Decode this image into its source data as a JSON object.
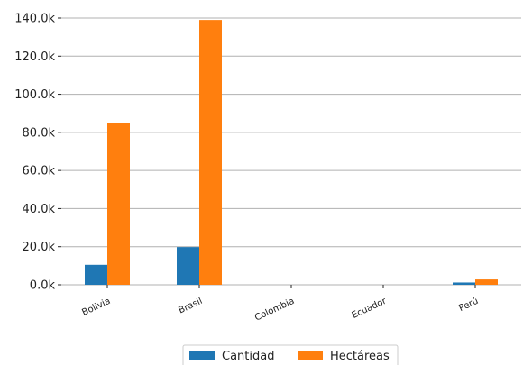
{
  "chart_data": {
    "type": "bar",
    "categories": [
      "Bolivia",
      "Brasil",
      "Colombia",
      "Ecuador",
      "Perú"
    ],
    "series": [
      {
        "name": "Cantidad",
        "color": "#1f77b4",
        "values": [
          10500,
          19800,
          0,
          0,
          1200
        ]
      },
      {
        "name": "Hectáreas",
        "color": "#ff7f0e",
        "values": [
          85000,
          139000,
          0,
          0,
          2800
        ]
      }
    ],
    "ylim": [
      0,
      140000
    ],
    "yticks": [
      0,
      20000,
      40000,
      60000,
      80000,
      100000,
      120000,
      140000
    ],
    "ytick_labels": [
      "0.0k",
      "20.0k",
      "40.0k",
      "60.0k",
      "80.0k",
      "100.0k",
      "120.0k",
      "140.0k"
    ],
    "grid": "horizontal",
    "legend_position": "bottom-center",
    "xlabel": "",
    "ylabel": "",
    "title": ""
  }
}
